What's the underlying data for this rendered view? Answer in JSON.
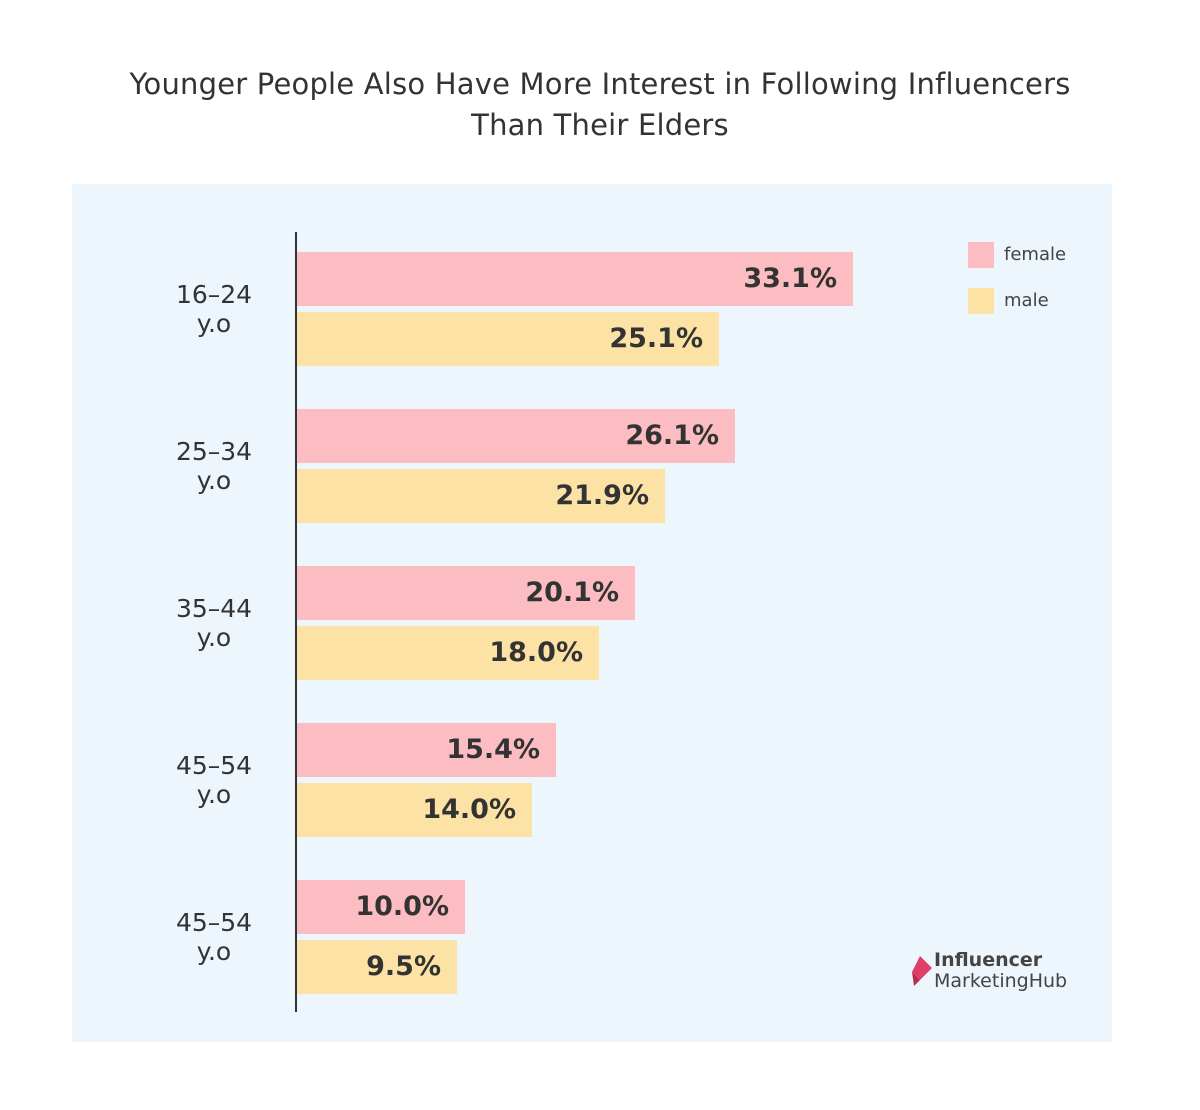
{
  "title_lines": [
    "Younger People Also Have More Interest in Following Influencers",
    "Than Their Elders"
  ],
  "colors": {
    "female": "#fbbdc1",
    "male": "#fde2a6",
    "panel": "#edf6fc",
    "logo_accent": "#e03e66"
  },
  "legend": [
    {
      "label": "female",
      "color": "#fbbdc1"
    },
    {
      "label": "male",
      "color": "#fde2a6"
    }
  ],
  "logo": {
    "line1": "Influencer",
    "line2": "MarketingHub",
    "icon": "influencer-marketing-hub-logo-icon"
  },
  "chart_data": {
    "type": "bar",
    "orientation": "horizontal",
    "title": "Younger People Also Have More Interest in Following Influencers Than Their Elders",
    "categories": [
      {
        "line1": "16–24",
        "line2": "y.o"
      },
      {
        "line1": "25–34",
        "line2": "y.o"
      },
      {
        "line1": "35–44",
        "line2": "y.o"
      },
      {
        "line1": "45–54",
        "line2": "y.o"
      },
      {
        "line1": "45–54",
        "line2": "y.o"
      }
    ],
    "series": [
      {
        "name": "female",
        "values": [
          33.1,
          26.1,
          20.1,
          15.4,
          10.0
        ],
        "labels": [
          "33.1%",
          "26.1%",
          "20.1%",
          "15.4%",
          "10.0%"
        ]
      },
      {
        "name": "male",
        "values": [
          25.1,
          21.9,
          18.0,
          14.0,
          9.5
        ],
        "labels": [
          "25.1%",
          "21.9%",
          "18.0%",
          "14.0%",
          "9.5%"
        ]
      }
    ],
    "xlim": [
      0,
      40
    ],
    "grid": false,
    "legend_position": "top-right",
    "value_labels": "inside-end"
  }
}
